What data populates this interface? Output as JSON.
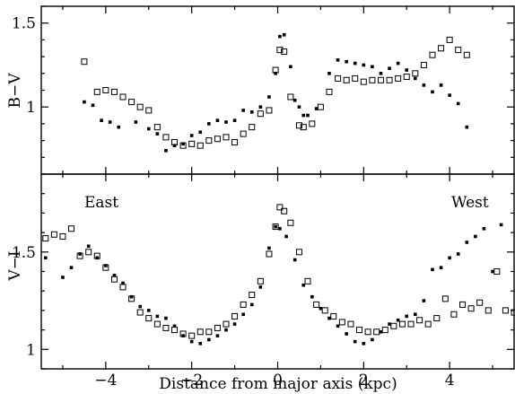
{
  "chart_data": [
    {
      "type": "scatter",
      "panel": "top",
      "ylabel": "B−V",
      "xlim": [
        -5.5,
        5.5
      ],
      "ylim": [
        0.6,
        1.6
      ],
      "xticks": [
        -4,
        -2,
        0,
        2,
        4
      ],
      "yticks": [
        1,
        1.5
      ],
      "ytick_labels": [
        "1",
        "1.5"
      ],
      "series": [
        {
          "marker": "filled-square",
          "points": [
            [
              -4.5,
              1.03
            ],
            [
              -4.3,
              1.01
            ],
            [
              -4.1,
              0.92
            ],
            [
              -3.9,
              0.91
            ],
            [
              -3.7,
              0.88
            ],
            [
              -3.3,
              0.91
            ],
            [
              -3.0,
              0.87
            ],
            [
              -2.8,
              0.84
            ],
            [
              -2.6,
              0.74
            ],
            [
              -2.4,
              0.77
            ],
            [
              -2.2,
              0.78
            ],
            [
              -2.0,
              0.83
            ],
            [
              -1.8,
              0.85
            ],
            [
              -1.6,
              0.9
            ],
            [
              -1.4,
              0.92
            ],
            [
              -1.2,
              0.91
            ],
            [
              -1.0,
              0.92
            ],
            [
              -0.8,
              0.98
            ],
            [
              -0.6,
              0.97
            ],
            [
              -0.4,
              1.0
            ],
            [
              -0.2,
              1.06
            ],
            [
              -0.05,
              1.2
            ],
            [
              0.05,
              1.42
            ],
            [
              0.15,
              1.43
            ],
            [
              0.3,
              1.24
            ],
            [
              0.4,
              1.04
            ],
            [
              0.5,
              1.0
            ],
            [
              0.6,
              0.95
            ],
            [
              0.7,
              0.95
            ],
            [
              0.9,
              0.99
            ],
            [
              1.2,
              1.2
            ],
            [
              1.4,
              1.28
            ],
            [
              1.6,
              1.27
            ],
            [
              1.8,
              1.26
            ],
            [
              2.0,
              1.25
            ],
            [
              2.2,
              1.24
            ],
            [
              2.4,
              1.2
            ],
            [
              2.6,
              1.23
            ],
            [
              2.8,
              1.26
            ],
            [
              3.0,
              1.22
            ],
            [
              3.2,
              1.17
            ],
            [
              3.4,
              1.13
            ],
            [
              3.6,
              1.09
            ],
            [
              3.8,
              1.13
            ],
            [
              4.0,
              1.07
            ],
            [
              4.2,
              1.02
            ],
            [
              4.4,
              0.88
            ]
          ]
        },
        {
          "marker": "open-square",
          "points": [
            [
              -4.5,
              1.27
            ],
            [
              -4.2,
              1.09
            ],
            [
              -4.0,
              1.1
            ],
            [
              -3.8,
              1.09
            ],
            [
              -3.6,
              1.06
            ],
            [
              -3.4,
              1.03
            ],
            [
              -3.2,
              1.0
            ],
            [
              -3.0,
              0.98
            ],
            [
              -2.8,
              0.88
            ],
            [
              -2.6,
              0.82
            ],
            [
              -2.4,
              0.79
            ],
            [
              -2.2,
              0.77
            ],
            [
              -2.0,
              0.78
            ],
            [
              -1.8,
              0.77
            ],
            [
              -1.6,
              0.8
            ],
            [
              -1.4,
              0.81
            ],
            [
              -1.2,
              0.82
            ],
            [
              -1.0,
              0.79
            ],
            [
              -0.8,
              0.84
            ],
            [
              -0.6,
              0.88
            ],
            [
              -0.4,
              0.96
            ],
            [
              -0.2,
              0.98
            ],
            [
              -0.05,
              1.22
            ],
            [
              0.05,
              1.34
            ],
            [
              0.15,
              1.33
            ],
            [
              0.3,
              1.06
            ],
            [
              0.5,
              0.89
            ],
            [
              0.6,
              0.88
            ],
            [
              0.8,
              0.9
            ],
            [
              1.0,
              1.0
            ],
            [
              1.2,
              1.09
            ],
            [
              1.4,
              1.17
            ],
            [
              1.6,
              1.16
            ],
            [
              1.8,
              1.17
            ],
            [
              2.0,
              1.15
            ],
            [
              2.2,
              1.16
            ],
            [
              2.4,
              1.16
            ],
            [
              2.6,
              1.16
            ],
            [
              2.8,
              1.17
            ],
            [
              3.0,
              1.18
            ],
            [
              3.2,
              1.2
            ],
            [
              3.4,
              1.25
            ],
            [
              3.6,
              1.31
            ],
            [
              3.8,
              1.35
            ],
            [
              4.0,
              1.4
            ],
            [
              4.2,
              1.34
            ],
            [
              4.4,
              1.31
            ]
          ]
        }
      ]
    },
    {
      "type": "scatter",
      "panel": "bottom",
      "ylabel": "V−I",
      "xlabel": "Distance from major axis (kpc)",
      "xlim": [
        -5.5,
        5.5
      ],
      "ylim": [
        0.9,
        1.9
      ],
      "xticks": [
        -4,
        -2,
        0,
        2,
        4
      ],
      "xtick_labels": [
        "−4",
        "−2",
        "0",
        "2",
        "4"
      ],
      "yticks": [
        1,
        1.5
      ],
      "ytick_labels": [
        "1",
        "1.5"
      ],
      "annotations": [
        "East",
        "West"
      ],
      "series": [
        {
          "marker": "filled-square",
          "points": [
            [
              -5.4,
              1.47
            ],
            [
              -5.0,
              1.37
            ],
            [
              -4.8,
              1.42
            ],
            [
              -4.6,
              1.49
            ],
            [
              -4.4,
              1.53
            ],
            [
              -4.2,
              1.47
            ],
            [
              -4.0,
              1.43
            ],
            [
              -3.8,
              1.38
            ],
            [
              -3.6,
              1.34
            ],
            [
              -3.4,
              1.27
            ],
            [
              -3.2,
              1.22
            ],
            [
              -3.0,
              1.2
            ],
            [
              -2.8,
              1.17
            ],
            [
              -2.6,
              1.16
            ],
            [
              -2.4,
              1.12
            ],
            [
              -2.2,
              1.07
            ],
            [
              -2.0,
              1.04
            ],
            [
              -1.8,
              1.03
            ],
            [
              -1.6,
              1.05
            ],
            [
              -1.4,
              1.07
            ],
            [
              -1.2,
              1.1
            ],
            [
              -1.0,
              1.13
            ],
            [
              -0.8,
              1.18
            ],
            [
              -0.6,
              1.23
            ],
            [
              -0.4,
              1.32
            ],
            [
              -0.2,
              1.52
            ],
            [
              -0.05,
              1.63
            ],
            [
              0.05,
              1.62
            ],
            [
              0.2,
              1.58
            ],
            [
              0.4,
              1.46
            ],
            [
              0.6,
              1.33
            ],
            [
              0.8,
              1.27
            ],
            [
              1.0,
              1.21
            ],
            [
              1.2,
              1.16
            ],
            [
              1.4,
              1.12
            ],
            [
              1.6,
              1.08
            ],
            [
              1.8,
              1.04
            ],
            [
              2.0,
              1.03
            ],
            [
              2.2,
              1.05
            ],
            [
              2.4,
              1.09
            ],
            [
              2.6,
              1.13
            ],
            [
              2.8,
              1.15
            ],
            [
              3.0,
              1.17
            ],
            [
              3.2,
              1.18
            ],
            [
              3.4,
              1.25
            ],
            [
              3.6,
              1.41
            ],
            [
              3.8,
              1.42
            ],
            [
              4.0,
              1.47
            ],
            [
              4.2,
              1.49
            ],
            [
              4.4,
              1.55
            ],
            [
              4.6,
              1.58
            ],
            [
              4.8,
              1.62
            ],
            [
              5.0,
              1.4
            ],
            [
              5.2,
              1.64
            ]
          ]
        },
        {
          "marker": "open-square",
          "points": [
            [
              -5.4,
              1.57
            ],
            [
              -5.2,
              1.59
            ],
            [
              -5.0,
              1.58
            ],
            [
              -4.8,
              1.62
            ],
            [
              -4.6,
              1.48
            ],
            [
              -4.4,
              1.5
            ],
            [
              -4.2,
              1.48
            ],
            [
              -4.0,
              1.42
            ],
            [
              -3.8,
              1.36
            ],
            [
              -3.6,
              1.32
            ],
            [
              -3.4,
              1.26
            ],
            [
              -3.2,
              1.19
            ],
            [
              -3.0,
              1.16
            ],
            [
              -2.8,
              1.13
            ],
            [
              -2.6,
              1.11
            ],
            [
              -2.4,
              1.1
            ],
            [
              -2.2,
              1.08
            ],
            [
              -2.0,
              1.07
            ],
            [
              -1.8,
              1.09
            ],
            [
              -1.6,
              1.09
            ],
            [
              -1.4,
              1.11
            ],
            [
              -1.2,
              1.13
            ],
            [
              -1.0,
              1.17
            ],
            [
              -0.8,
              1.23
            ],
            [
              -0.6,
              1.28
            ],
            [
              -0.4,
              1.35
            ],
            [
              -0.2,
              1.49
            ],
            [
              -0.05,
              1.63
            ],
            [
              0.05,
              1.73
            ],
            [
              0.15,
              1.71
            ],
            [
              0.3,
              1.65
            ],
            [
              0.5,
              1.5
            ],
            [
              0.7,
              1.35
            ],
            [
              0.9,
              1.23
            ],
            [
              1.1,
              1.2
            ],
            [
              1.3,
              1.17
            ],
            [
              1.5,
              1.14
            ],
            [
              1.7,
              1.13
            ],
            [
              1.9,
              1.1
            ],
            [
              2.1,
              1.09
            ],
            [
              2.3,
              1.09
            ],
            [
              2.5,
              1.1
            ],
            [
              2.7,
              1.12
            ],
            [
              2.9,
              1.13
            ],
            [
              3.1,
              1.13
            ],
            [
              3.3,
              1.15
            ],
            [
              3.5,
              1.13
            ],
            [
              3.7,
              1.16
            ],
            [
              3.9,
              1.26
            ],
            [
              4.1,
              1.18
            ],
            [
              4.3,
              1.23
            ],
            [
              4.5,
              1.21
            ],
            [
              4.7,
              1.24
            ],
            [
              4.9,
              1.2
            ],
            [
              5.1,
              1.4
            ],
            [
              5.3,
              1.2
            ],
            [
              5.5,
              1.19
            ]
          ]
        }
      ]
    }
  ]
}
